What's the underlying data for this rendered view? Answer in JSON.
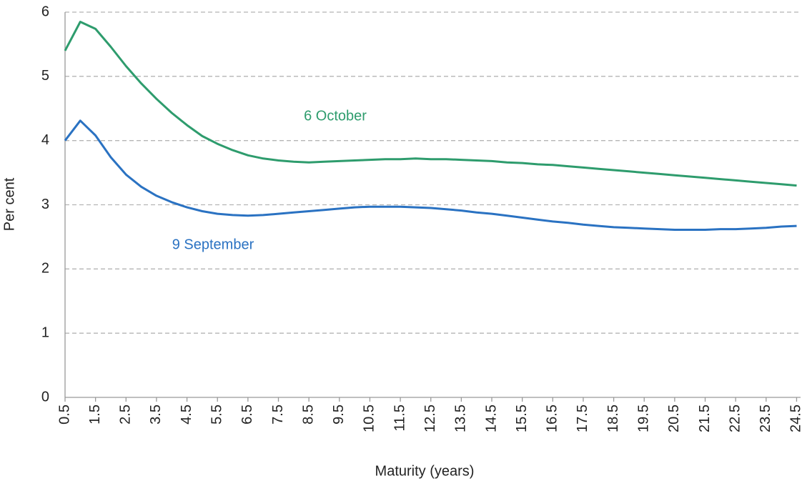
{
  "chart_data": {
    "type": "line",
    "xlabel": "Maturity (years)",
    "ylabel": "Per cent",
    "x": [
      0.5,
      1,
      1.5,
      2,
      2.5,
      3,
      3.5,
      4,
      4.5,
      5,
      5.5,
      6,
      6.5,
      7,
      7.5,
      8,
      8.5,
      9,
      9.5,
      10,
      10.5,
      11,
      11.5,
      12,
      12.5,
      13,
      13.5,
      14,
      14.5,
      15,
      15.5,
      16,
      16.5,
      17,
      17.5,
      18,
      18.5,
      19,
      19.5,
      20,
      20.5,
      21,
      21.5,
      22,
      22.5,
      23,
      23.5,
      24,
      24.5
    ],
    "series": [
      {
        "name": "6 October",
        "color": "#2e9c6d",
        "values": [
          5.4,
          5.85,
          5.74,
          5.46,
          5.16,
          4.89,
          4.65,
          4.43,
          4.24,
          4.07,
          3.95,
          3.85,
          3.77,
          3.72,
          3.69,
          3.67,
          3.66,
          3.67,
          3.68,
          3.69,
          3.7,
          3.71,
          3.71,
          3.72,
          3.71,
          3.71,
          3.7,
          3.69,
          3.68,
          3.66,
          3.65,
          3.63,
          3.62,
          3.6,
          3.58,
          3.56,
          3.54,
          3.52,
          3.5,
          3.48,
          3.46,
          3.44,
          3.42,
          3.4,
          3.38,
          3.36,
          3.34,
          3.32,
          3.3
        ]
      },
      {
        "name": "9 September",
        "color": "#2a72c2",
        "values": [
          4.0,
          4.31,
          4.08,
          3.74,
          3.47,
          3.28,
          3.14,
          3.04,
          2.96,
          2.9,
          2.86,
          2.84,
          2.83,
          2.84,
          2.86,
          2.88,
          2.9,
          2.92,
          2.94,
          2.96,
          2.97,
          2.97,
          2.97,
          2.96,
          2.95,
          2.93,
          2.91,
          2.88,
          2.86,
          2.83,
          2.8,
          2.77,
          2.74,
          2.72,
          2.69,
          2.67,
          2.65,
          2.64,
          2.63,
          2.62,
          2.61,
          2.61,
          2.61,
          2.62,
          2.62,
          2.63,
          2.64,
          2.66,
          2.67
        ]
      }
    ],
    "xlim": [
      0.5,
      24.63
    ],
    "xticks": [
      0.5,
      1.5,
      2.5,
      3.5,
      4.5,
      5.5,
      6.5,
      7.5,
      8.5,
      9.5,
      10.5,
      11.5,
      12.5,
      13.5,
      14.5,
      15.5,
      16.5,
      17.5,
      18.5,
      19.5,
      20.5,
      21.5,
      22.5,
      23.5,
      24.5
    ],
    "ylim": [
      0,
      6
    ],
    "yticks": [
      0,
      1,
      2,
      3,
      4,
      5,
      6
    ],
    "grid": true
  }
}
